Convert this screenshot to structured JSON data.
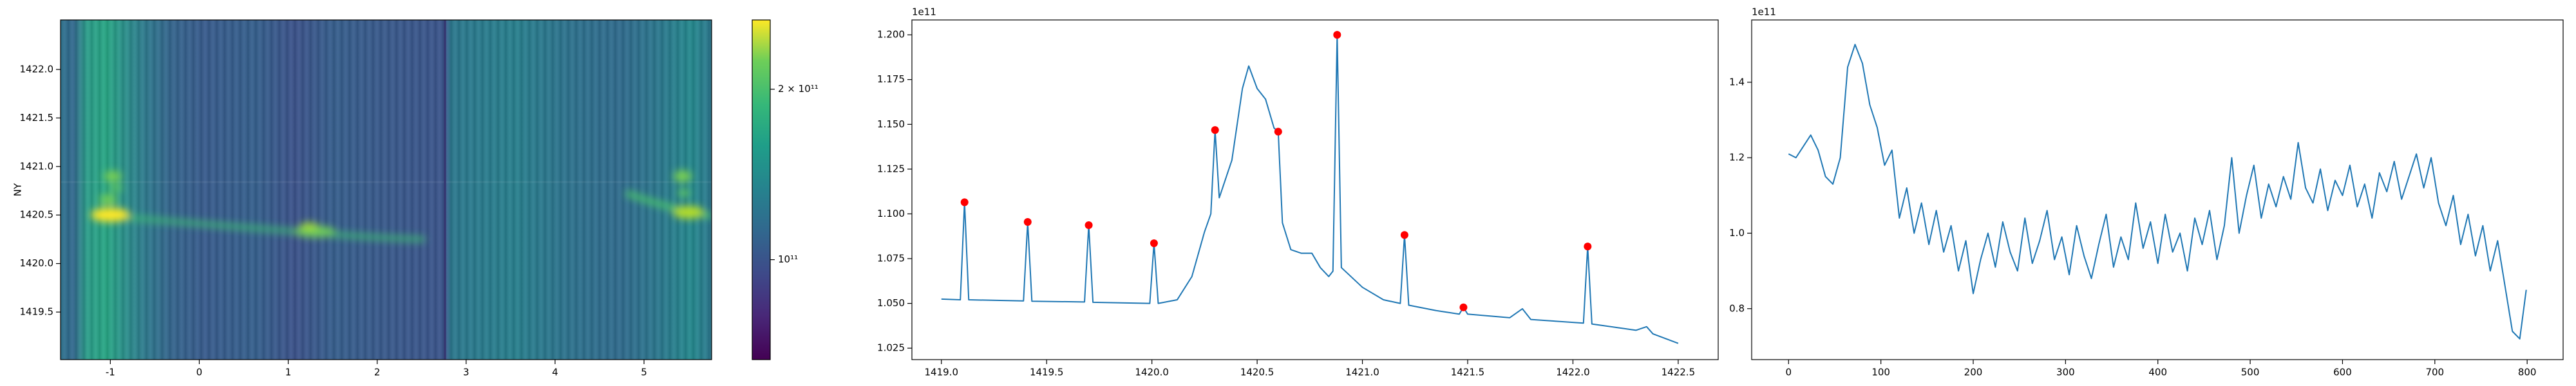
{
  "chart_data": [
    {
      "type": "heatmap",
      "y_label": "NY",
      "xlim": [
        -1.56,
        5.76
      ],
      "ylim": [
        1419.01,
        1422.51
      ],
      "xticks": [
        -1,
        0,
        1,
        2,
        3,
        4,
        5
      ],
      "yticks": [
        1419.5,
        {
          "value": 1420.0,
          "label": "1420.0"
        },
        1420.5,
        {
          "value": 1421.0,
          "label": "1421.0"
        },
        1421.5,
        {
          "value": 1422.0,
          "label": "1422.0"
        }
      ],
      "clim": [
        66600000000,
        265000000000
      ],
      "clog": true,
      "cticks": [
        {
          "value": 100000000000,
          "label": "10¹¹"
        },
        {
          "value": 200000000000,
          "label": "2 × 10¹¹"
        }
      ]
    },
    {
      "type": "line",
      "offset_text": "1e11",
      "xlim": [
        1418.86,
        1422.69
      ],
      "ylim": [
        1.0186,
        1.2083
      ],
      "xticks": [
        {
          "value": 1419.0,
          "label": "1419.0"
        },
        1419.5,
        {
          "value": 1420.0,
          "label": "1420.0"
        },
        1420.5,
        {
          "value": 1421.0,
          "label": "1421.0"
        },
        1421.5,
        {
          "value": 1422.0,
          "label": "1422.0"
        },
        1422.5
      ],
      "yticks": [
        1.025,
        {
          "value": 1.05,
          "label": "1.050"
        },
        1.075,
        {
          "value": 1.1,
          "label": "1.100"
        },
        1.125,
        {
          "value": 1.15,
          "label": "1.150"
        },
        1.175,
        {
          "value": 1.2,
          "label": "1.200"
        }
      ],
      "series": [
        {
          "color": "#1f77b4",
          "x": [
            1419.0,
            1419.09,
            1419.11,
            1419.13,
            1419.39,
            1419.41,
            1419.43,
            1419.68,
            1419.7,
            1419.72,
            1419.99,
            1420.01,
            1420.03,
            1420.12,
            1420.19,
            1420.25,
            1420.28,
            1420.3,
            1420.32,
            1420.38,
            1420.43,
            1420.46,
            1420.5,
            1420.54,
            1420.58,
            1420.6,
            1420.62,
            1420.66,
            1420.71,
            1420.76,
            1420.8,
            1420.84,
            1420.86,
            1420.88,
            1420.9,
            1421.0,
            1421.1,
            1421.18,
            1421.2,
            1421.22,
            1421.35,
            1421.46,
            1421.48,
            1421.5,
            1421.7,
            1421.76,
            1421.8,
            1422.05,
            1422.07,
            1422.09,
            1422.3,
            1422.35,
            1422.38,
            1422.5
          ],
          "values": [
            1.0524,
            1.052,
            1.1065,
            1.052,
            1.0514,
            1.0955,
            1.0512,
            1.0508,
            1.0937,
            1.0506,
            1.05,
            1.0836,
            1.05,
            1.052,
            1.065,
            1.09,
            1.1,
            1.1468,
            1.109,
            1.13,
            1.17,
            1.1826,
            1.17,
            1.164,
            1.148,
            1.1459,
            1.095,
            1.08,
            1.078,
            1.078,
            1.07,
            1.065,
            1.068,
            1.2,
            1.07,
            1.059,
            1.052,
            1.05,
            1.0882,
            1.049,
            1.046,
            1.044,
            1.0478,
            1.044,
            1.042,
            1.047,
            1.041,
            1.039,
            1.0818,
            1.0385,
            1.035,
            1.037,
            1.033,
            1.0277
          ]
        }
      ],
      "markers": {
        "color": "red",
        "x": [
          1419.11,
          1419.41,
          1419.7,
          1420.01,
          1420.3,
          1420.6,
          1420.88,
          1421.2,
          1421.48,
          1422.07
        ],
        "values": [
          1.1065,
          1.0955,
          1.0937,
          1.0836,
          1.1468,
          1.1459,
          1.2,
          1.0882,
          1.0478,
          1.0818
        ]
      }
    },
    {
      "type": "line",
      "offset_text": "1e11",
      "xlim": [
        -39.95,
        838.95
      ],
      "ylim": [
        0.665,
        1.565
      ],
      "xticks": [
        0,
        100,
        200,
        300,
        400,
        500,
        600,
        700,
        800
      ],
      "yticks": [
        0.8,
        {
          "value": 1.0,
          "label": "1.0"
        },
        1.2,
        1.4
      ],
      "series": [
        {
          "color": "#1f77b4",
          "x": [
            0,
            8,
            16,
            24,
            32,
            40,
            48,
            56,
            64,
            72,
            80,
            88,
            96,
            104,
            112,
            120,
            128,
            136,
            144,
            152,
            160,
            168,
            176,
            184,
            192,
            200,
            208,
            216,
            224,
            232,
            240,
            248,
            256,
            264,
            272,
            280,
            288,
            296,
            304,
            312,
            320,
            328,
            336,
            344,
            352,
            360,
            368,
            376,
            384,
            392,
            400,
            408,
            416,
            424,
            432,
            440,
            448,
            456,
            464,
            472,
            480,
            488,
            496,
            504,
            512,
            520,
            528,
            536,
            544,
            552,
            560,
            568,
            576,
            584,
            592,
            600,
            608,
            616,
            624,
            632,
            640,
            648,
            656,
            664,
            672,
            680,
            688,
            696,
            704,
            712,
            720,
            728,
            736,
            744,
            752,
            760,
            768,
            776,
            784,
            792,
            799
          ],
          "values": [
            1.21,
            1.2,
            1.23,
            1.26,
            1.22,
            1.15,
            1.13,
            1.2,
            1.44,
            1.5,
            1.45,
            1.34,
            1.28,
            1.18,
            1.22,
            1.04,
            1.12,
            1.0,
            1.08,
            0.97,
            1.06,
            0.95,
            1.02,
            0.9,
            0.98,
            0.84,
            0.93,
            1.0,
            0.91,
            1.03,
            0.95,
            0.9,
            1.04,
            0.92,
            0.98,
            1.06,
            0.93,
            0.99,
            0.89,
            1.02,
            0.94,
            0.88,
            0.97,
            1.05,
            0.91,
            0.99,
            0.93,
            1.08,
            0.96,
            1.03,
            0.92,
            1.05,
            0.95,
            1.0,
            0.9,
            1.04,
            0.97,
            1.06,
            0.93,
            1.02,
            1.2,
            1.0,
            1.1,
            1.18,
            1.04,
            1.13,
            1.07,
            1.15,
            1.09,
            1.24,
            1.12,
            1.08,
            1.17,
            1.06,
            1.14,
            1.1,
            1.18,
            1.07,
            1.13,
            1.04,
            1.16,
            1.11,
            1.19,
            1.09,
            1.15,
            1.21,
            1.12,
            1.2,
            1.08,
            1.02,
            1.1,
            0.97,
            1.05,
            0.94,
            1.02,
            0.9,
            0.98,
            0.86,
            0.74,
            0.72,
            0.85
          ]
        }
      ]
    }
  ]
}
